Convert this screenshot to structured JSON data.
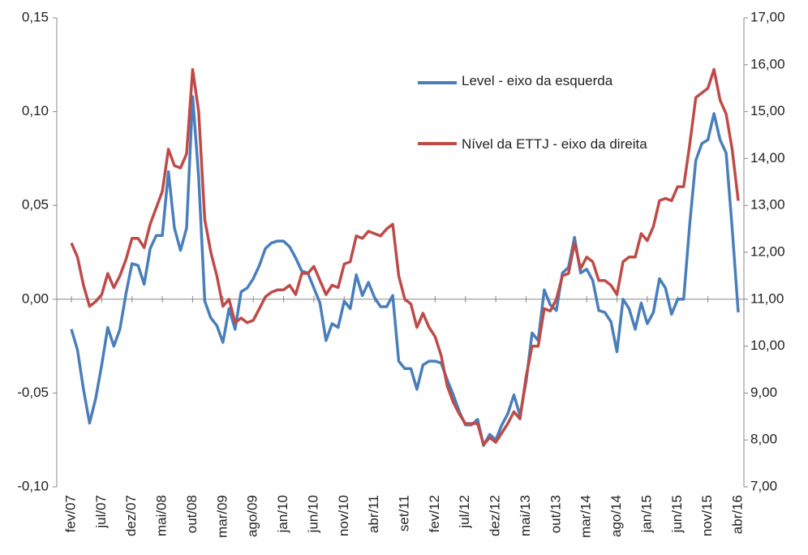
{
  "chart_data": {
    "type": "line",
    "categories": [
      "fev/07",
      null,
      null,
      null,
      null,
      "jul/07",
      null,
      null,
      null,
      null,
      "dez/07",
      null,
      null,
      null,
      null,
      "mai/08",
      null,
      null,
      null,
      null,
      "out/08",
      null,
      null,
      null,
      null,
      "mar/09",
      null,
      null,
      null,
      null,
      "ago/09",
      null,
      null,
      null,
      null,
      "jan/10",
      null,
      null,
      null,
      null,
      "jun/10",
      null,
      null,
      null,
      null,
      "nov/10",
      null,
      null,
      null,
      null,
      "abr/11",
      null,
      null,
      null,
      null,
      "set/11",
      null,
      null,
      null,
      null,
      "fev/12",
      null,
      null,
      null,
      null,
      "jul/12",
      null,
      null,
      null,
      null,
      "dez/12",
      null,
      null,
      null,
      null,
      "mai/13",
      null,
      null,
      null,
      null,
      "out/13",
      null,
      null,
      null,
      null,
      "mar/14",
      null,
      null,
      null,
      null,
      "ago/14",
      null,
      null,
      null,
      null,
      "jan/15",
      null,
      null,
      null,
      null,
      "jun/15",
      null,
      null,
      null,
      null,
      "nov/15",
      null,
      null,
      null,
      null,
      "abr/16"
    ],
    "series": [
      {
        "name": "Level - eixo da esquerda",
        "color": "#4a7ebb",
        "axis": "y",
        "values": [
          -0.016,
          -0.027,
          -0.048,
          -0.066,
          -0.053,
          -0.035,
          -0.015,
          -0.025,
          -0.016,
          0.003,
          0.019,
          0.018,
          0.008,
          0.027,
          0.034,
          0.034,
          0.068,
          0.038,
          0.026,
          0.038,
          0.108,
          0.065,
          -0.001,
          -0.01,
          -0.014,
          -0.023,
          -0.005,
          -0.016,
          0.004,
          0.006,
          0.011,
          0.018,
          0.027,
          0.03,
          0.031,
          0.031,
          0.028,
          0.022,
          0.015,
          0.014,
          0.006,
          -0.002,
          -0.022,
          -0.013,
          -0.015,
          -0.001,
          -0.005,
          0.013,
          0.002,
          0.009,
          0.001,
          -0.004,
          -0.004,
          0.002,
          -0.033,
          -0.037,
          -0.037,
          -0.048,
          -0.035,
          -0.033,
          -0.033,
          -0.034,
          -0.043,
          -0.051,
          -0.06,
          -0.067,
          -0.067,
          -0.064,
          -0.078,
          -0.072,
          -0.075,
          -0.067,
          -0.061,
          -0.051,
          -0.062,
          -0.044,
          -0.018,
          -0.022,
          0.005,
          -0.003,
          -0.006,
          0.014,
          0.017,
          0.033,
          0.014,
          0.016,
          0.01,
          -0.006,
          -0.007,
          -0.012,
          -0.028,
          0.0,
          -0.005,
          -0.016,
          -0.002,
          -0.013,
          -0.007,
          0.011,
          0.006,
          -0.008,
          0.0,
          0.0,
          0.04,
          0.074,
          0.083,
          0.085,
          0.099,
          0.085,
          0.078,
          0.038,
          -0.007
        ]
      },
      {
        "name": "Nível da ETTJ - eixo da direita",
        "color": "#be4b48",
        "axis": "y2",
        "values": [
          12.2,
          11.9,
          11.3,
          10.85,
          10.95,
          11.1,
          11.55,
          11.25,
          11.5,
          11.85,
          12.3,
          12.3,
          12.1,
          12.6,
          12.95,
          13.3,
          14.2,
          13.85,
          13.8,
          14.1,
          15.9,
          15.0,
          12.7,
          12.0,
          11.5,
          10.85,
          11.0,
          10.5,
          10.6,
          10.5,
          10.55,
          10.8,
          11.05,
          11.15,
          11.2,
          11.2,
          11.3,
          11.1,
          11.55,
          11.55,
          11.7,
          11.4,
          11.1,
          11.3,
          11.25,
          11.75,
          11.8,
          12.35,
          12.3,
          12.45,
          12.4,
          12.35,
          12.5,
          12.6,
          11.5,
          11.0,
          10.9,
          10.4,
          10.7,
          10.4,
          10.2,
          9.8,
          9.15,
          8.8,
          8.55,
          8.35,
          8.35,
          8.35,
          7.9,
          8.05,
          7.95,
          8.15,
          8.35,
          8.6,
          8.45,
          9.35,
          10.0,
          10.0,
          10.8,
          10.75,
          11.0,
          11.5,
          11.55,
          12.2,
          11.65,
          11.9,
          11.8,
          11.4,
          11.4,
          11.3,
          11.1,
          11.8,
          11.9,
          11.9,
          12.4,
          12.25,
          12.55,
          13.1,
          13.15,
          13.1,
          13.4,
          13.4,
          14.3,
          15.3,
          15.4,
          15.5,
          15.9,
          15.25,
          14.95,
          14.2,
          13.1
        ]
      }
    ],
    "ylim": [
      -0.1,
      0.15
    ],
    "yticks": [
      {
        "value": -0.1,
        "label": "-0,10"
      },
      {
        "value": -0.05,
        "label": "-0,05"
      },
      {
        "value": 0,
        "label": "0,00"
      },
      {
        "value": 0.05,
        "label": "0,05"
      },
      {
        "value": 0.1,
        "label": "0,10"
      },
      {
        "value": 0.15,
        "label": "0,15"
      }
    ],
    "y2lim": [
      7,
      17
    ],
    "y2ticks": [
      {
        "value": 7,
        "label": "7,00"
      },
      {
        "value": 8,
        "label": "8,00"
      },
      {
        "value": 9,
        "label": "9,00"
      },
      {
        "value": 10,
        "label": "10,00"
      },
      {
        "value": 11,
        "label": "11,00"
      },
      {
        "value": 12,
        "label": "12,00"
      },
      {
        "value": 13,
        "label": "13,00"
      },
      {
        "value": 14,
        "label": "14,00"
      },
      {
        "value": 15,
        "label": "15,00"
      },
      {
        "value": 16,
        "label": "16,00"
      },
      {
        "value": 17,
        "label": "17,00"
      }
    ],
    "grid": false
  }
}
